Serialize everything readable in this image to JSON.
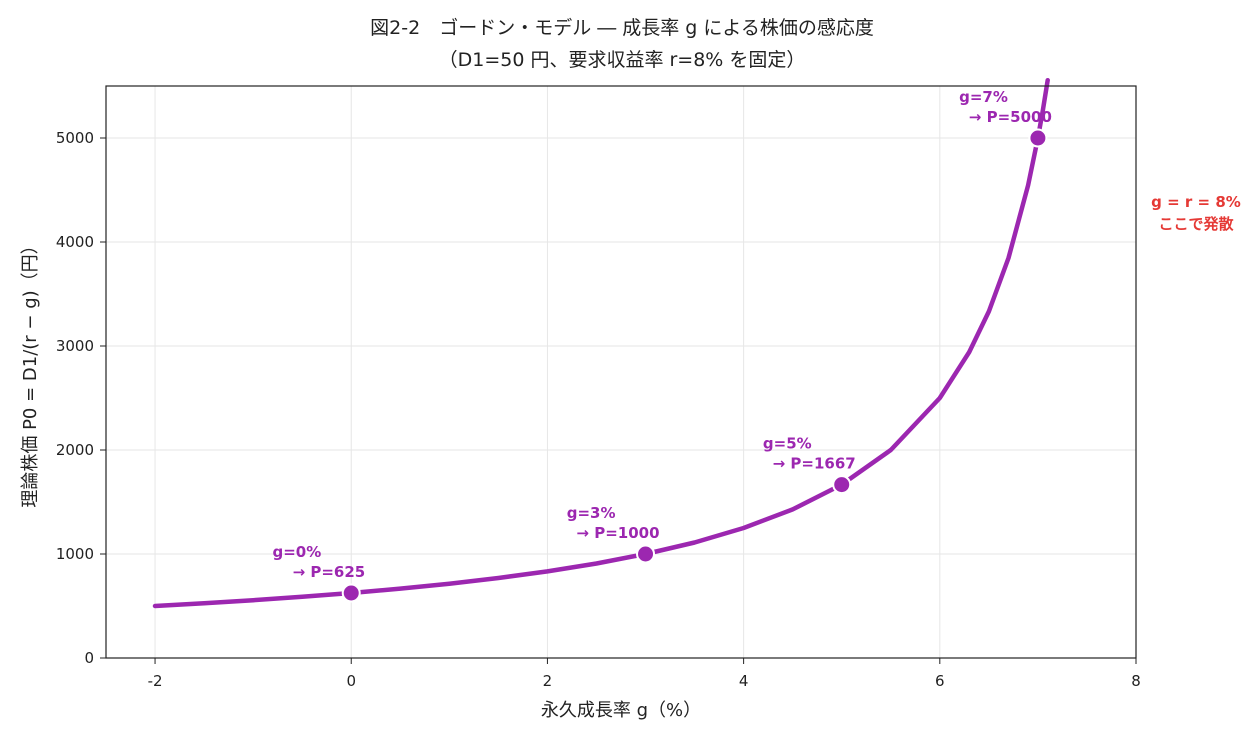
{
  "chart_data": {
    "type": "line",
    "title": "図2-2　ゴードン・モデル ― 成長率 g による株価の感応度",
    "subtitle": "（D1=50 円、要求収益率 r=8% を固定）",
    "xlabel": "永久成長率 g（%）",
    "ylabel": "理論株価 P0 = D1/(r − g)（円）",
    "xlim": [
      -2.5,
      8
    ],
    "ylim": [
      0,
      5500
    ],
    "xticks": [
      -2,
      0,
      2,
      4,
      6,
      8
    ],
    "yticks": [
      0,
      1000,
      2000,
      3000,
      4000,
      5000
    ],
    "xtick_labels": [
      "-2",
      "0",
      "2",
      "4",
      "6",
      "8"
    ],
    "ytick_labels": [
      "0",
      "1000",
      "2000",
      "3000",
      "4000",
      "5000"
    ],
    "grid": true,
    "params": {
      "D1": 50,
      "r": 8
    },
    "series": [
      {
        "color": "#9c27b0",
        "x": [
          -2,
          -1.5,
          -1,
          -0.5,
          0,
          0.5,
          1,
          1.5,
          2,
          2.5,
          3,
          3.5,
          4,
          4.5,
          5,
          5.5,
          6,
          6.3,
          6.5,
          6.7,
          6.9,
          7,
          7.05,
          7.1
        ],
        "y": [
          500,
          526,
          556,
          588,
          625,
          667,
          714,
          769,
          833,
          909,
          1000,
          1111,
          1250,
          1429,
          1667,
          2000,
          2500,
          2941,
          3333,
          3846,
          4545,
          5000,
          5263,
          5556
        ]
      }
    ],
    "points": [
      {
        "x": 0,
        "y": 625,
        "label_g": "g=0%",
        "label_p": "→ P=625"
      },
      {
        "x": 3,
        "y": 1000,
        "label_g": "g=3%",
        "label_p": "→ P=1000"
      },
      {
        "x": 5,
        "y": 1667,
        "label_g": "g=5%",
        "label_p": "→ P=1667"
      },
      {
        "x": 7,
        "y": 5000,
        "label_g": "g=7%",
        "label_p": "→ P=5000"
      }
    ],
    "divergence_annotation": {
      "line1": "g = r = 8%",
      "line2": "ここで発散",
      "color": "#e53935"
    }
  }
}
